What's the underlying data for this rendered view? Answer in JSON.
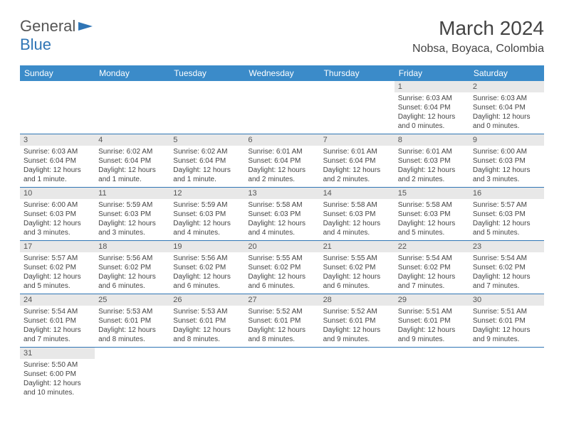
{
  "logo": {
    "part1": "General",
    "part2": "Blue"
  },
  "title": "March 2024",
  "location": "Nobsa, Boyaca, Colombia",
  "colors": {
    "header_bg": "#3b8bc9",
    "accent": "#2f75b5",
    "daynum_bg": "#e8e8e8",
    "text": "#444444"
  },
  "weekdays": [
    "Sunday",
    "Monday",
    "Tuesday",
    "Wednesday",
    "Thursday",
    "Friday",
    "Saturday"
  ],
  "weeks": [
    [
      null,
      null,
      null,
      null,
      null,
      {
        "n": "1",
        "sr": "Sunrise: 6:03 AM",
        "ss": "Sunset: 6:04 PM",
        "dl": "Daylight: 12 hours and 0 minutes."
      },
      {
        "n": "2",
        "sr": "Sunrise: 6:03 AM",
        "ss": "Sunset: 6:04 PM",
        "dl": "Daylight: 12 hours and 0 minutes."
      }
    ],
    [
      {
        "n": "3",
        "sr": "Sunrise: 6:03 AM",
        "ss": "Sunset: 6:04 PM",
        "dl": "Daylight: 12 hours and 1 minute."
      },
      {
        "n": "4",
        "sr": "Sunrise: 6:02 AM",
        "ss": "Sunset: 6:04 PM",
        "dl": "Daylight: 12 hours and 1 minute."
      },
      {
        "n": "5",
        "sr": "Sunrise: 6:02 AM",
        "ss": "Sunset: 6:04 PM",
        "dl": "Daylight: 12 hours and 1 minute."
      },
      {
        "n": "6",
        "sr": "Sunrise: 6:01 AM",
        "ss": "Sunset: 6:04 PM",
        "dl": "Daylight: 12 hours and 2 minutes."
      },
      {
        "n": "7",
        "sr": "Sunrise: 6:01 AM",
        "ss": "Sunset: 6:04 PM",
        "dl": "Daylight: 12 hours and 2 minutes."
      },
      {
        "n": "8",
        "sr": "Sunrise: 6:01 AM",
        "ss": "Sunset: 6:03 PM",
        "dl": "Daylight: 12 hours and 2 minutes."
      },
      {
        "n": "9",
        "sr": "Sunrise: 6:00 AM",
        "ss": "Sunset: 6:03 PM",
        "dl": "Daylight: 12 hours and 3 minutes."
      }
    ],
    [
      {
        "n": "10",
        "sr": "Sunrise: 6:00 AM",
        "ss": "Sunset: 6:03 PM",
        "dl": "Daylight: 12 hours and 3 minutes."
      },
      {
        "n": "11",
        "sr": "Sunrise: 5:59 AM",
        "ss": "Sunset: 6:03 PM",
        "dl": "Daylight: 12 hours and 3 minutes."
      },
      {
        "n": "12",
        "sr": "Sunrise: 5:59 AM",
        "ss": "Sunset: 6:03 PM",
        "dl": "Daylight: 12 hours and 4 minutes."
      },
      {
        "n": "13",
        "sr": "Sunrise: 5:58 AM",
        "ss": "Sunset: 6:03 PM",
        "dl": "Daylight: 12 hours and 4 minutes."
      },
      {
        "n": "14",
        "sr": "Sunrise: 5:58 AM",
        "ss": "Sunset: 6:03 PM",
        "dl": "Daylight: 12 hours and 4 minutes."
      },
      {
        "n": "15",
        "sr": "Sunrise: 5:58 AM",
        "ss": "Sunset: 6:03 PM",
        "dl": "Daylight: 12 hours and 5 minutes."
      },
      {
        "n": "16",
        "sr": "Sunrise: 5:57 AM",
        "ss": "Sunset: 6:03 PM",
        "dl": "Daylight: 12 hours and 5 minutes."
      }
    ],
    [
      {
        "n": "17",
        "sr": "Sunrise: 5:57 AM",
        "ss": "Sunset: 6:02 PM",
        "dl": "Daylight: 12 hours and 5 minutes."
      },
      {
        "n": "18",
        "sr": "Sunrise: 5:56 AM",
        "ss": "Sunset: 6:02 PM",
        "dl": "Daylight: 12 hours and 6 minutes."
      },
      {
        "n": "19",
        "sr": "Sunrise: 5:56 AM",
        "ss": "Sunset: 6:02 PM",
        "dl": "Daylight: 12 hours and 6 minutes."
      },
      {
        "n": "20",
        "sr": "Sunrise: 5:55 AM",
        "ss": "Sunset: 6:02 PM",
        "dl": "Daylight: 12 hours and 6 minutes."
      },
      {
        "n": "21",
        "sr": "Sunrise: 5:55 AM",
        "ss": "Sunset: 6:02 PM",
        "dl": "Daylight: 12 hours and 6 minutes."
      },
      {
        "n": "22",
        "sr": "Sunrise: 5:54 AM",
        "ss": "Sunset: 6:02 PM",
        "dl": "Daylight: 12 hours and 7 minutes."
      },
      {
        "n": "23",
        "sr": "Sunrise: 5:54 AM",
        "ss": "Sunset: 6:02 PM",
        "dl": "Daylight: 12 hours and 7 minutes."
      }
    ],
    [
      {
        "n": "24",
        "sr": "Sunrise: 5:54 AM",
        "ss": "Sunset: 6:01 PM",
        "dl": "Daylight: 12 hours and 7 minutes."
      },
      {
        "n": "25",
        "sr": "Sunrise: 5:53 AM",
        "ss": "Sunset: 6:01 PM",
        "dl": "Daylight: 12 hours and 8 minutes."
      },
      {
        "n": "26",
        "sr": "Sunrise: 5:53 AM",
        "ss": "Sunset: 6:01 PM",
        "dl": "Daylight: 12 hours and 8 minutes."
      },
      {
        "n": "27",
        "sr": "Sunrise: 5:52 AM",
        "ss": "Sunset: 6:01 PM",
        "dl": "Daylight: 12 hours and 8 minutes."
      },
      {
        "n": "28",
        "sr": "Sunrise: 5:52 AM",
        "ss": "Sunset: 6:01 PM",
        "dl": "Daylight: 12 hours and 9 minutes."
      },
      {
        "n": "29",
        "sr": "Sunrise: 5:51 AM",
        "ss": "Sunset: 6:01 PM",
        "dl": "Daylight: 12 hours and 9 minutes."
      },
      {
        "n": "30",
        "sr": "Sunrise: 5:51 AM",
        "ss": "Sunset: 6:01 PM",
        "dl": "Daylight: 12 hours and 9 minutes."
      }
    ],
    [
      {
        "n": "31",
        "sr": "Sunrise: 5:50 AM",
        "ss": "Sunset: 6:00 PM",
        "dl": "Daylight: 12 hours and 10 minutes."
      },
      null,
      null,
      null,
      null,
      null,
      null
    ]
  ]
}
